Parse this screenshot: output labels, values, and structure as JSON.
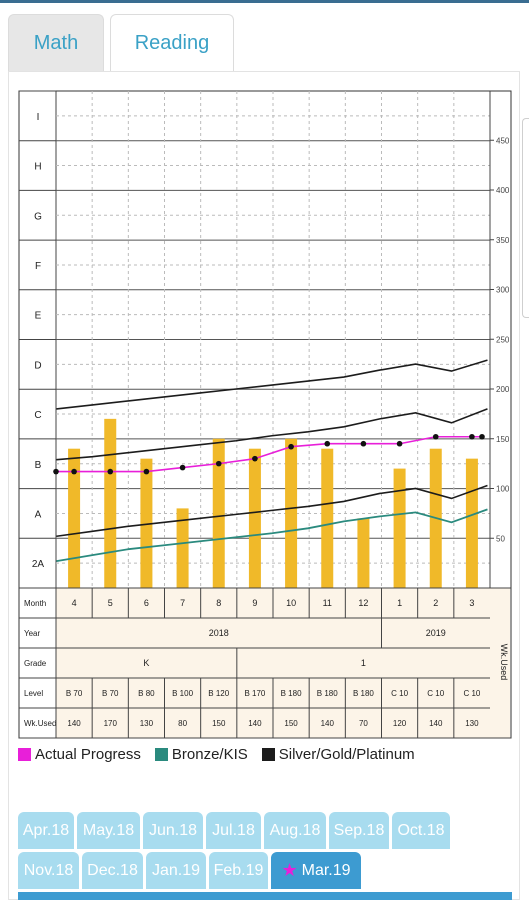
{
  "tabs": [
    {
      "label": "Math",
      "active": false
    },
    {
      "label": "Reading",
      "active": true
    }
  ],
  "colors": {
    "bar": "#f0b929",
    "actual": "#e81fd9",
    "bronze": "#2a8a7e",
    "silver": "#1c1c1c",
    "selected_tab": "#3d9bd1",
    "tab": "#a8dcef",
    "table_bg": "#fcf4e8"
  },
  "chart_data": {
    "type": "bar",
    "categories": [
      "4",
      "5",
      "6",
      "7",
      "8",
      "9",
      "10",
      "11",
      "12",
      "1",
      "2",
      "3"
    ],
    "values": [
      140,
      170,
      130,
      80,
      150,
      140,
      150,
      140,
      70,
      120,
      140,
      130
    ],
    "series_lines": [
      {
        "name": "Actual Progress",
        "values": [
          117,
          117,
          117,
          121,
          125,
          130,
          142,
          145,
          145,
          145,
          152,
          152
        ]
      },
      {
        "name": "Bronze/KIS",
        "values": [
          27,
          33,
          39,
          43,
          47,
          51,
          55,
          60,
          67,
          72,
          76,
          66,
          79
        ]
      },
      {
        "name": "Silver/Gold/Platinum upper",
        "values": [
          180,
          184,
          188,
          192,
          196,
          200,
          204,
          208,
          212,
          219,
          225,
          218,
          229
        ]
      },
      {
        "name": "Silver/Gold/Platinum middle",
        "values": [
          129,
          132,
          136,
          140,
          144,
          148,
          153,
          157,
          162,
          170,
          176,
          166,
          180
        ]
      },
      {
        "name": "Silver/Gold/Platinum lower",
        "values": [
          52,
          57,
          62,
          66,
          70,
          74,
          78,
          82,
          87,
          95,
          100,
          90,
          103
        ]
      }
    ],
    "ylim": [
      0,
      475
    ],
    "yticks": [
      "50",
      "100",
      "150",
      "200",
      "250",
      "300",
      "350",
      "400",
      "450"
    ],
    "ytick_values": [
      50,
      100,
      150,
      200,
      250,
      300,
      350,
      400,
      450
    ],
    "left_levels": [
      "I",
      "H",
      "G",
      "F",
      "E",
      "D",
      "C",
      "B",
      "A",
      "2A"
    ],
    "right_label": "Wk.Used",
    "table": {
      "row_labels": [
        "Month",
        "Year",
        "Grade",
        "Level",
        "Wk.Used"
      ],
      "years": [
        {
          "label": "2018",
          "span": 9
        },
        {
          "label": "2019",
          "span": 3
        }
      ],
      "grades": [
        {
          "label": "K",
          "span": 5
        },
        {
          "label": "1",
          "span": 7
        }
      ],
      "levels": [
        "B 70",
        "B 70",
        "B 80",
        "B 100",
        "B 120",
        "B 170",
        "B 180",
        "B 180",
        "B 180",
        "C 10",
        "C 10",
        "C 10"
      ],
      "wk_used": [
        "140",
        "170",
        "130",
        "80",
        "150",
        "140",
        "150",
        "140",
        "70",
        "120",
        "140",
        "130"
      ]
    }
  },
  "legend": [
    {
      "label": "Actual Progress",
      "color": "#e81fd9"
    },
    {
      "label": "Bronze/KIS",
      "color": "#2a8a7e"
    },
    {
      "label": "Silver/Gold/Platinum",
      "color": "#1c1c1c"
    }
  ],
  "months": [
    [
      "Apr.18",
      "May.18",
      "Jun.18",
      "Jul.18",
      "Aug.18",
      "Sep.18",
      "Oct.18"
    ],
    [
      "Nov.18",
      "Dec.18",
      "Jan.19",
      "Feb.19",
      "Mar.19"
    ]
  ],
  "selected_month": "Mar.19"
}
